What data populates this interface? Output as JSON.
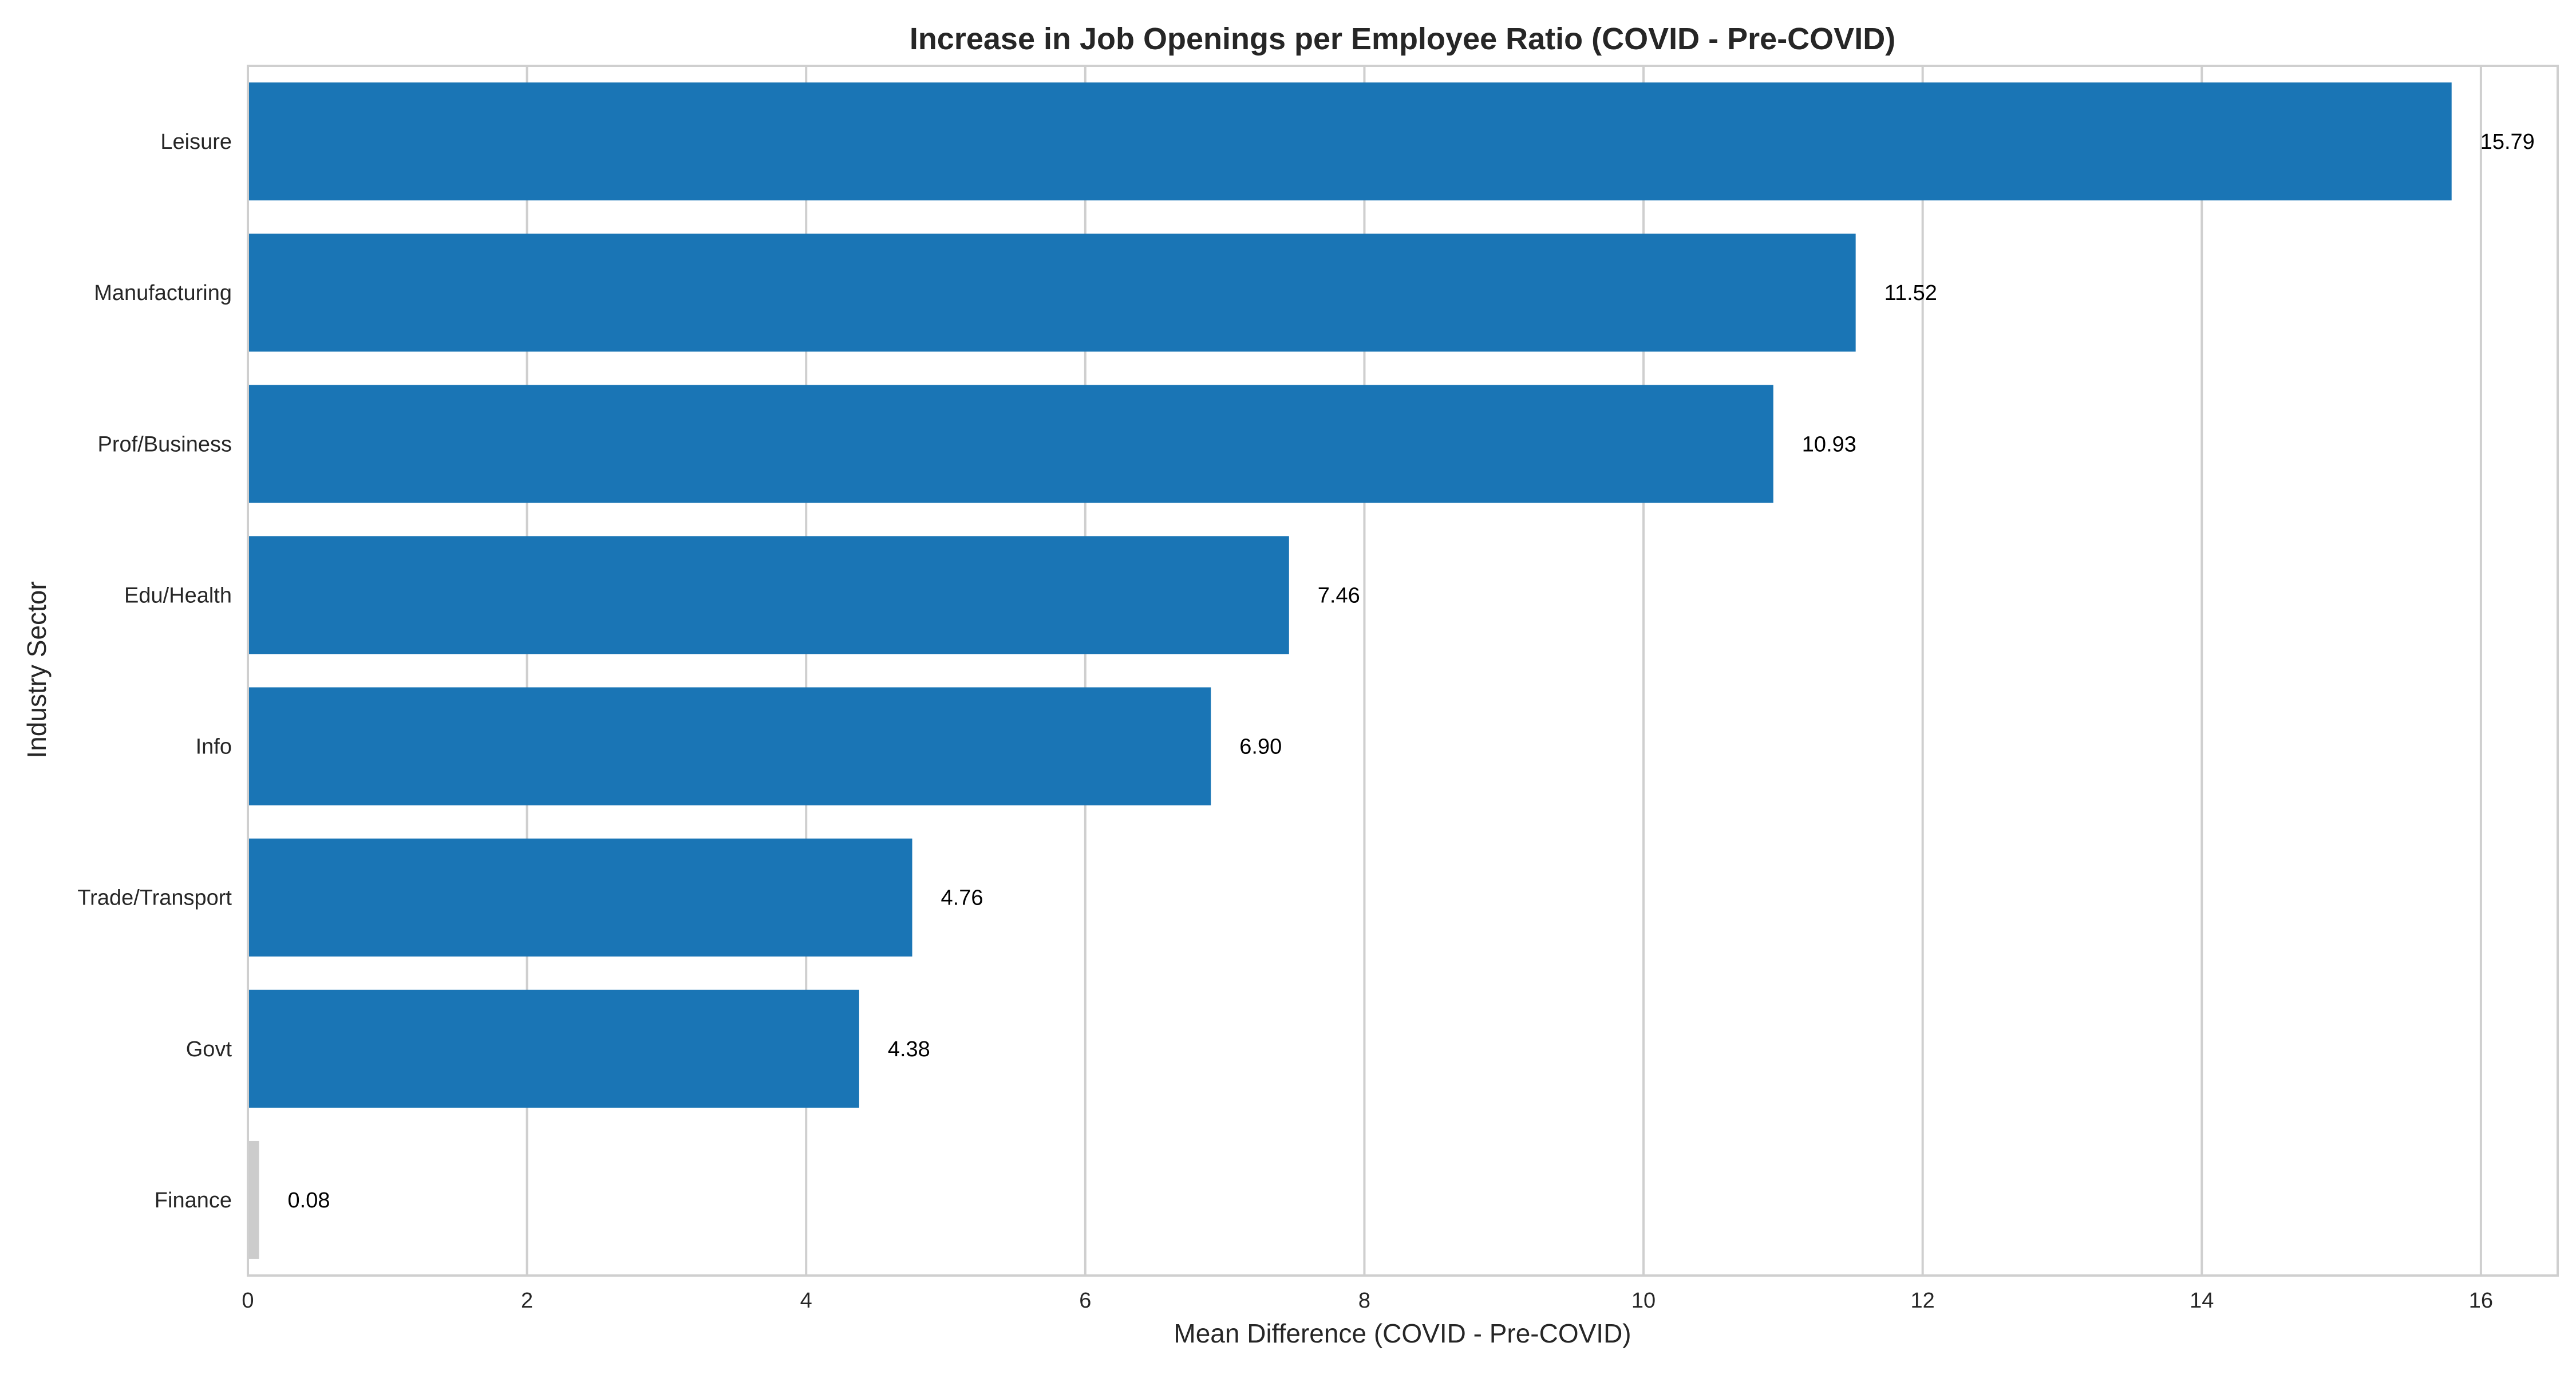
{
  "chart_data": {
    "type": "bar",
    "orientation": "horizontal",
    "title": "Increase in Job Openings per Employee Ratio (COVID - Pre-COVID)",
    "xlabel": "Mean Difference (COVID - Pre-COVID)",
    "ylabel": "Industry Sector",
    "xlim": [
      0,
      16.55
    ],
    "xticks": [
      "0",
      "2",
      "4",
      "6",
      "8",
      "10",
      "12",
      "14",
      "16"
    ],
    "categories": [
      "Leisure",
      "Manufacturing",
      "Prof/Business",
      "Edu/Health",
      "Info",
      "Trade/Transport",
      "Govt",
      "Finance"
    ],
    "values": [
      15.79,
      11.52,
      10.93,
      7.46,
      6.9,
      4.76,
      4.38,
      0.08
    ],
    "value_labels": [
      "15.79",
      "11.52",
      "10.93",
      "7.46",
      "6.90",
      "4.76",
      "4.38",
      "0.08"
    ],
    "bar_colors": [
      "#1a75b5",
      "#1a75b5",
      "#1a75b5",
      "#1a75b5",
      "#1a75b5",
      "#1a75b5",
      "#1a75b5",
      "#cccccc"
    ],
    "grid": true,
    "legend": "none"
  }
}
